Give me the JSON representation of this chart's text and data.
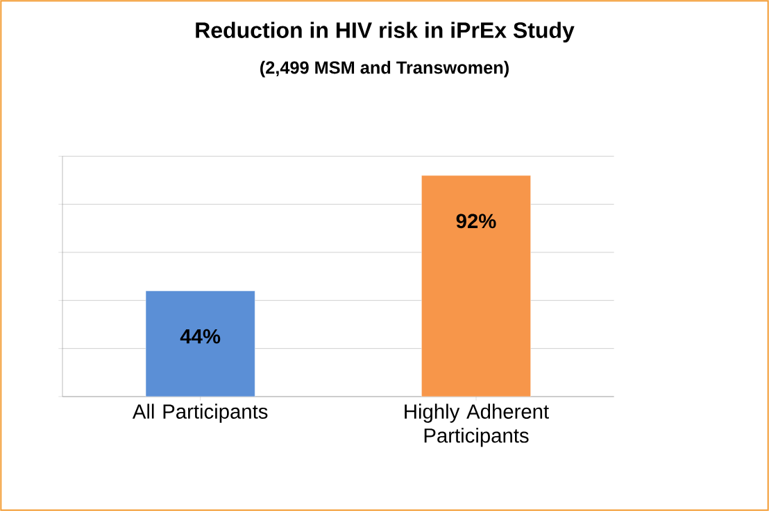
{
  "chart_data": {
    "type": "bar",
    "title": "Reduction in HIV risk in iPrEx Study",
    "subtitle": "(2,499 MSM and Transwomen)",
    "categories": [
      "All Participants",
      "Highly Adherent Participants"
    ],
    "values": [
      44,
      92
    ],
    "colors": [
      "#5b8fd6",
      "#f7964a"
    ],
    "value_labels": [
      "44%",
      "92%"
    ],
    "ylim": [
      0,
      100
    ],
    "yticks": [
      {
        "value": 0,
        "label": null
      },
      {
        "value": 20,
        "label": null
      },
      {
        "value": 40,
        "label": null
      },
      {
        "value": 60,
        "label": null
      },
      {
        "value": 80,
        "label": null
      },
      {
        "value": 100,
        "label": null
      }
    ],
    "grid": "y",
    "tick_labels": "x"
  }
}
